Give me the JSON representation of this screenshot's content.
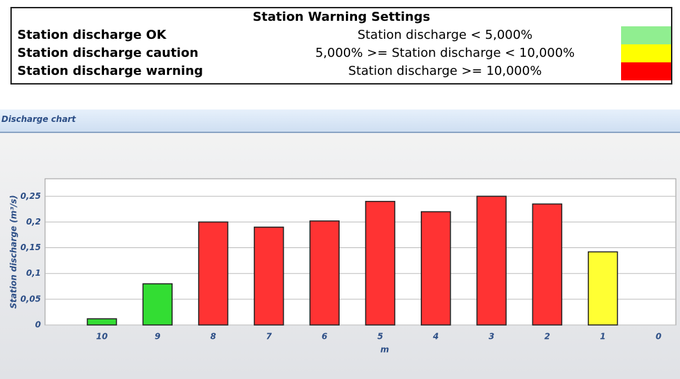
{
  "settings": {
    "title": "Station Warning Settings",
    "rows": [
      {
        "label": "Station discharge OK",
        "condition": "Station discharge < 5,000%",
        "color": "#90ee90"
      },
      {
        "label": "Station discharge caution",
        "condition": "5,000% >= Station discharge < 10,000%",
        "color": "#ffff00"
      },
      {
        "label": "Station discharge warning",
        "condition": "Station discharge >= 10,000%",
        "color": "#ff0000"
      }
    ]
  },
  "panel": {
    "title": "Discharge chart"
  },
  "chart_data": {
    "type": "bar",
    "y_label": "Station discharge (m³/s)",
    "x_label": "m",
    "categories": [
      "10",
      "9",
      "8",
      "7",
      "6",
      "5",
      "4",
      "3",
      "2",
      "1",
      "0"
    ],
    "values": [
      0.012,
      0.08,
      0.2,
      0.19,
      0.202,
      0.24,
      0.22,
      0.25,
      0.235,
      0.142,
      null
    ],
    "colors": [
      "#33dd33",
      "#33dd33",
      "#ff3333",
      "#ff3333",
      "#ff3333",
      "#ff3333",
      "#ff3333",
      "#ff3333",
      "#ff3333",
      "#ffff33",
      null
    ],
    "ylim": [
      0,
      0.284
    ],
    "yticks": [
      0,
      {
        "value": 0.05,
        "label": "0,05"
      },
      {
        "value": 0.1,
        "label": "0,1"
      },
      {
        "value": 0.15,
        "label": "0,15"
      },
      {
        "value": 0.2,
        "label": "0,2"
      },
      {
        "value": 0.25,
        "label": "0,25"
      }
    ],
    "grid": true
  }
}
